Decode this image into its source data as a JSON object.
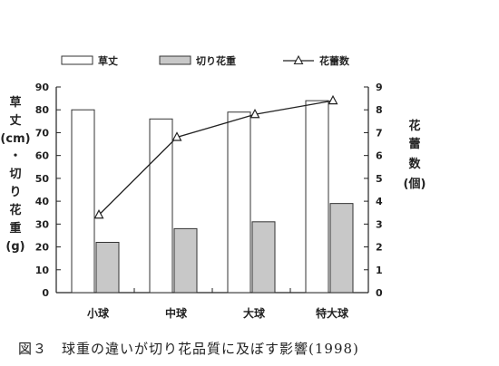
{
  "chart_data": {
    "type": "bar",
    "categories": [
      "小球",
      "中球",
      "大球",
      "特大球"
    ],
    "series": [
      {
        "name": "草丈",
        "type": "bar",
        "axis": "left",
        "fill": "#ffffff",
        "values": [
          80,
          76,
          79,
          84
        ]
      },
      {
        "name": "切り花重",
        "type": "bar",
        "axis": "left",
        "fill": "#c8c8c8",
        "values": [
          22,
          28,
          31,
          39
        ]
      },
      {
        "name": "花蕾数",
        "type": "line",
        "axis": "right",
        "marker": "triangle",
        "values": [
          3.4,
          6.8,
          7.8,
          8.4
        ]
      }
    ],
    "ylabel_left_lines": [
      "草",
      "丈",
      "(cm)",
      "・",
      "切",
      "り",
      "花",
      "重",
      "(g)"
    ],
    "ylabel_right_lines": [
      "花",
      "蕾",
      "数",
      "(個)"
    ],
    "ylim_left": [
      0,
      90
    ],
    "yticks_left": [
      0,
      10,
      20,
      30,
      40,
      50,
      60,
      70,
      80,
      90
    ],
    "ylim_right": [
      0,
      9
    ],
    "yticks_right": [
      0,
      1,
      2,
      3,
      4,
      5,
      6,
      7,
      8,
      9
    ],
    "legend_position": "top",
    "grid": false
  },
  "caption": "図３　球重の違いが切り花品質に及ぼす影響(1998)"
}
